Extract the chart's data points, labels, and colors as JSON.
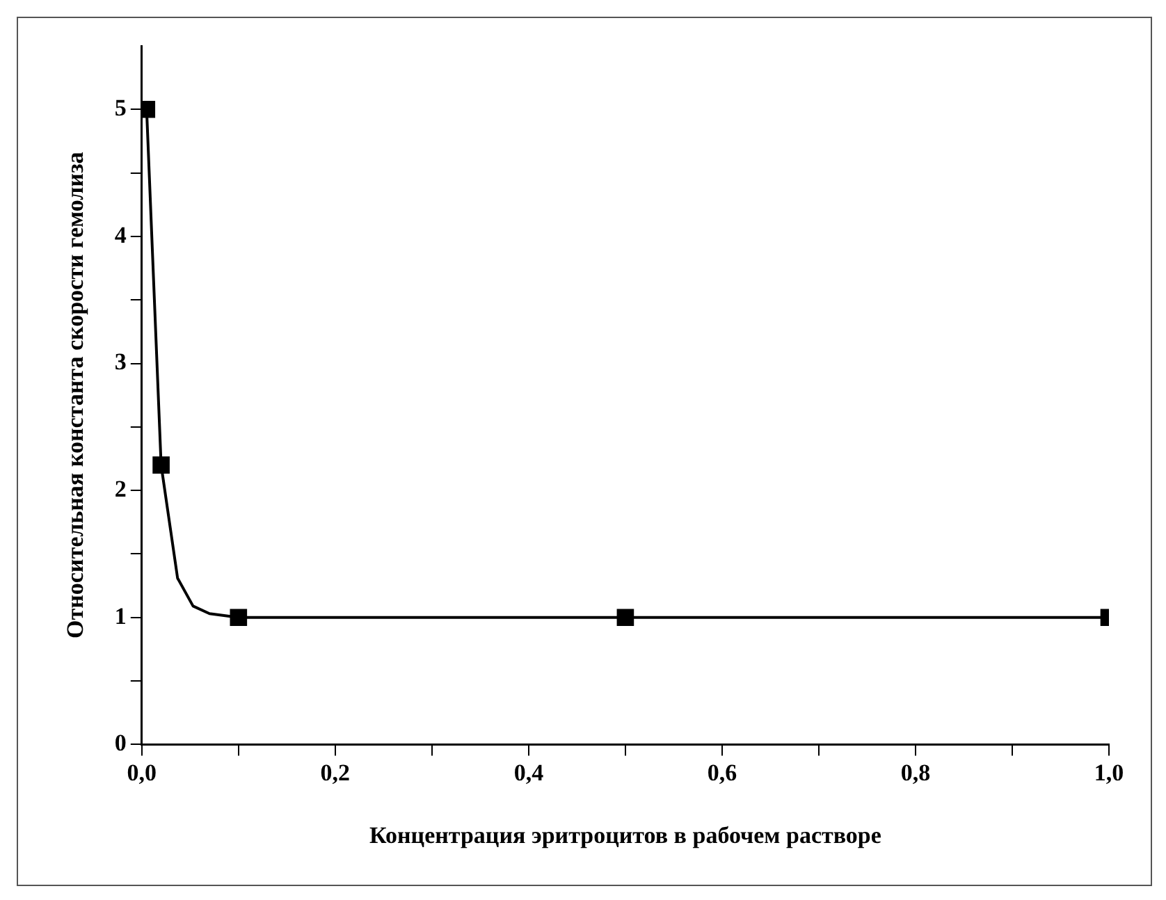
{
  "chart_data": {
    "type": "scatter",
    "xlabel": "Концентрация эритроцитов в рабочем растворе",
    "ylabel": "Относительная константа скорости гемолиза",
    "xlim": [
      0,
      1
    ],
    "ylim": [
      0,
      5.5
    ],
    "xticks": [
      {
        "value": 0,
        "label": "0,0"
      },
      {
        "value": 0.1,
        "label": null
      },
      {
        "value": 0.2,
        "label": "0,2"
      },
      {
        "value": 0.3,
        "label": null
      },
      {
        "value": 0.4,
        "label": "0,4"
      },
      {
        "value": 0.5,
        "label": null
      },
      {
        "value": 0.6,
        "label": "0,6"
      },
      {
        "value": 0.7,
        "label": null
      },
      {
        "value": 0.8,
        "label": "0,8"
      },
      {
        "value": 0.9,
        "label": null
      },
      {
        "value": 1,
        "label": "1,0"
      }
    ],
    "yticks": [
      0,
      {
        "value": 0.5,
        "label": null
      },
      1,
      {
        "value": 1.5,
        "label": null
      },
      2,
      {
        "value": 2.5,
        "label": null
      },
      3,
      {
        "value": 3.5,
        "label": null
      },
      4,
      {
        "value": 4.5,
        "label": null
      },
      5
    ],
    "grid": false,
    "legend": false,
    "series": [
      {
        "type": "line",
        "color": "#000000",
        "marker": "none",
        "line_style": "solid",
        "x": [
          0.005,
          0.02,
          0.037,
          0.053,
          0.07,
          0.1,
          1
        ],
        "values": [
          5,
          2.2,
          1.31,
          1.09,
          1.03,
          1,
          1
        ]
      },
      {
        "color": "#000000",
        "marker": "square",
        "x": [
          0.005,
          0.02,
          0.1,
          0.5,
          1
        ],
        "values": [
          5,
          2.2,
          1,
          1,
          1
        ]
      }
    ]
  }
}
